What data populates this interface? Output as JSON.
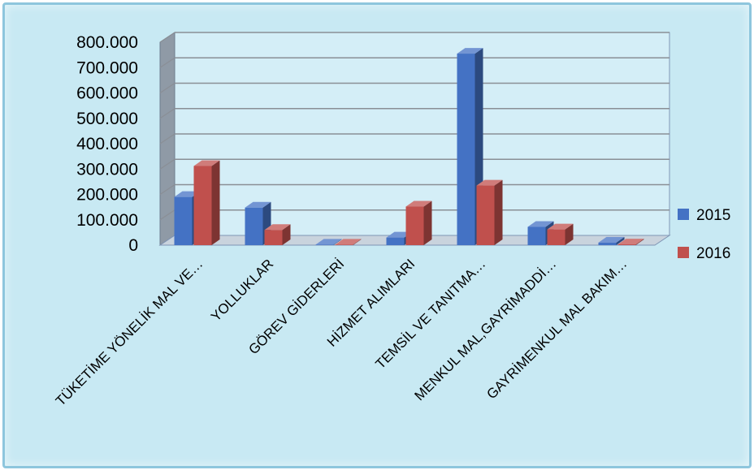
{
  "chart_data": {
    "type": "bar",
    "categories": [
      "TÜKETİME YÖNELİK MAL VE…",
      "YOLLUKLAR",
      "GÖREV GİDERLERİ",
      "HİZMET ALIMLARI",
      "TEMSİL VE TANITMA…",
      "MENKUL MAL,GAYRİMADDİ…",
      "GAYRİMENKUL MAL BAKIM…"
    ],
    "series": [
      {
        "name": "2015",
        "color": "#4472c4",
        "values": [
          190000,
          148000,
          2000,
          30000,
          755000,
          72000,
          10000
        ]
      },
      {
        "name": "2016",
        "color": "#c0504d",
        "values": [
          312000,
          60000,
          2000,
          152000,
          235000,
          62000,
          3000
        ]
      }
    ],
    "yticks": [
      "0",
      "100.000",
      "200.000",
      "300.000",
      "400.000",
      "500.000",
      "600.000",
      "700.000",
      "800.000"
    ],
    "ylim": [
      0,
      800000
    ],
    "grid": true,
    "legend": "right"
  }
}
